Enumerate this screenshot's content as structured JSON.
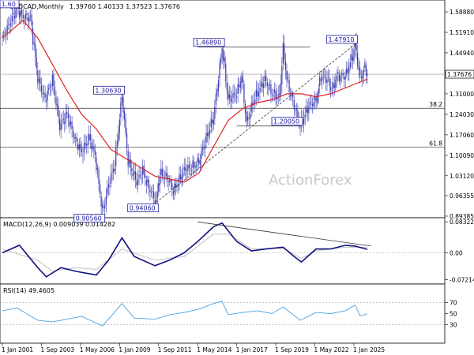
{
  "chart_data": [
    {
      "type": "candlestick",
      "title": "USDCAD,Monthly",
      "ohlc_header": "1.39760 1.40133 1.37523 1.37676",
      "current_price": 1.37676,
      "current_price_label": "1.37676",
      "ylim": [
        0.8938,
        1.6238
      ],
      "y_ticks": [
        "1.58880",
        "1.51910",
        "1.44940",
        "1.37970",
        "1.31000",
        "1.24030",
        "1.17060",
        "1.10090",
        "1.03120",
        "0.96355",
        "0.89385"
      ],
      "x_ticks": [
        "1 Jan 2001",
        "1 Sep 2003",
        "1 May 2006",
        "1 Jan 2009",
        "1 Sep 2011",
        "1 May 2014",
        "1 Jan 2017",
        "1 Sep 2019",
        "1 May 2022",
        "1 Jan 2025"
      ],
      "watermark": "ActionForex",
      "price_path": [
        [
          "2001-01",
          1.5
        ],
        [
          "2001-07",
          1.55
        ],
        [
          "2002-01",
          1.6
        ],
        [
          "2002-06",
          1.57
        ],
        [
          "2002-12",
          1.57
        ],
        [
          "2003-06",
          1.36
        ],
        [
          "2003-12",
          1.29
        ],
        [
          "2004-06",
          1.36
        ],
        [
          "2004-12",
          1.2
        ],
        [
          "2005-06",
          1.24
        ],
        [
          "2005-12",
          1.16
        ],
        [
          "2006-06",
          1.11
        ],
        [
          "2006-12",
          1.16
        ],
        [
          "2007-05",
          1.1
        ],
        [
          "2007-11",
          0.9056
        ],
        [
          "2008-04",
          1.0
        ],
        [
          "2008-09",
          1.07
        ],
        [
          "2009-03",
          1.3063
        ],
        [
          "2009-08",
          1.08
        ],
        [
          "2010-03",
          1.01
        ],
        [
          "2010-08",
          1.05
        ],
        [
          "2010-12",
          1.0
        ],
        [
          "2011-07",
          0.9406
        ],
        [
          "2011-10",
          1.04
        ],
        [
          "2012-05",
          1.02
        ],
        [
          "2012-09",
          0.98
        ],
        [
          "2013-06",
          1.05
        ],
        [
          "2013-12",
          1.06
        ],
        [
          "2014-06",
          1.08
        ],
        [
          "2014-12",
          1.16
        ],
        [
          "2015-06",
          1.23
        ],
        [
          "2016-01",
          1.4689
        ],
        [
          "2016-06",
          1.29
        ],
        [
          "2017-01",
          1.31
        ],
        [
          "2017-05",
          1.37
        ],
        [
          "2017-09",
          1.21
        ],
        [
          "2018-03",
          1.29
        ],
        [
          "2018-12",
          1.36
        ],
        [
          "2019-06",
          1.31
        ],
        [
          "2019-12",
          1.3
        ],
        [
          "2020-03",
          1.4668
        ],
        [
          "2020-06",
          1.36
        ],
        [
          "2020-12",
          1.27
        ],
        [
          "2021-05",
          1.2005
        ],
        [
          "2021-12",
          1.27
        ],
        [
          "2022-06",
          1.29
        ],
        [
          "2022-10",
          1.37
        ],
        [
          "2023-03",
          1.36
        ],
        [
          "2023-07",
          1.32
        ],
        [
          "2023-11",
          1.37
        ],
        [
          "2024-06",
          1.37
        ],
        [
          "2024-12",
          1.44
        ],
        [
          "2025-02",
          1.4791
        ],
        [
          "2025-06",
          1.36
        ],
        [
          "2025-10",
          1.4
        ],
        [
          "2025-12",
          1.3768
        ]
      ],
      "moving_average_path": [
        [
          "2001-01",
          1.5
        ],
        [
          "2002-06",
          1.56
        ],
        [
          "2003-06",
          1.5
        ],
        [
          "2004-06",
          1.41
        ],
        [
          "2005-06",
          1.32
        ],
        [
          "2006-06",
          1.24
        ],
        [
          "2007-06",
          1.19
        ],
        [
          "2008-06",
          1.12
        ],
        [
          "2009-06",
          1.09
        ],
        [
          "2010-06",
          1.06
        ],
        [
          "2011-06",
          1.03
        ],
        [
          "2012-06",
          1.02
        ],
        [
          "2013-06",
          1.01
        ],
        [
          "2014-06",
          1.04
        ],
        [
          "2015-06",
          1.13
        ],
        [
          "2016-06",
          1.22
        ],
        [
          "2017-06",
          1.26
        ],
        [
          "2018-06",
          1.28
        ],
        [
          "2019-06",
          1.29
        ],
        [
          "2020-06",
          1.31
        ],
        [
          "2021-06",
          1.31
        ],
        [
          "2022-06",
          1.3
        ],
        [
          "2023-06",
          1.31
        ],
        [
          "2024-06",
          1.33
        ],
        [
          "2025-06",
          1.35
        ],
        [
          "2025-12",
          1.36
        ]
      ],
      "annotations": [
        {
          "label": "1.46890",
          "date": "2016-01",
          "value": 1.4689
        },
        {
          "label": "1.47910",
          "date": "2025-02",
          "value": 1.4791
        },
        {
          "label": "1.30630",
          "date": "2009-03",
          "value": 1.3063
        },
        {
          "label": "1.20050",
          "date": "2021-05",
          "value": 1.2005
        },
        {
          "label": "0.94060",
          "date": "2011-07",
          "value": 0.9406
        },
        {
          "label": "0.90560",
          "date": "2007-11",
          "value": 0.9056
        },
        {
          "label": "1.60",
          "date": "2002-01",
          "value": 1.6
        }
      ],
      "fib_levels": [
        {
          "label": "38.2",
          "value": 1.2609
        },
        {
          "label": "61.8",
          "value": 1.1288
        }
      ],
      "resistance_lines": [
        {
          "from": "2014-05",
          "to": "2022-01",
          "value": 1.4689
        },
        {
          "from": "2017-01",
          "to": "2021-05",
          "value": 1.2005
        }
      ],
      "trendline": {
        "from": [
          "2011-07",
          0.9406
        ],
        "to": [
          "2025-02",
          1.4791
        ]
      }
    },
    {
      "type": "line",
      "title": "MACD(12,26,9) 0.009039 0.014282",
      "ylim": [
        -0.08,
        0.09
      ],
      "y_ticks": [
        "0.083225",
        "0.00",
        "-0.072148"
      ],
      "macd_path": [
        [
          "2001-01",
          0.0
        ],
        [
          "2002-03",
          0.02
        ],
        [
          "2003-06",
          -0.04
        ],
        [
          "2004-01",
          -0.065
        ],
        [
          "2005-01",
          -0.04
        ],
        [
          "2006-01",
          -0.05
        ],
        [
          "2007-06",
          -0.06
        ],
        [
          "2008-04",
          -0.02
        ],
        [
          "2009-03",
          0.04
        ],
        [
          "2010-01",
          -0.01
        ],
        [
          "2011-06",
          -0.035
        ],
        [
          "2012-06",
          -0.02
        ],
        [
          "2013-06",
          0.0
        ],
        [
          "2014-05",
          0.03
        ],
        [
          "2015-06",
          0.07
        ],
        [
          "2016-01",
          0.08
        ],
        [
          "2017-01",
          0.03
        ],
        [
          "2018-01",
          0.005
        ],
        [
          "2019-01",
          0.01
        ],
        [
          "2020-03",
          0.015
        ],
        [
          "2020-12",
          -0.01
        ],
        [
          "2021-06",
          -0.025
        ],
        [
          "2022-06",
          0.01
        ],
        [
          "2023-06",
          0.01
        ],
        [
          "2024-06",
          0.02
        ],
        [
          "2025-02",
          0.018
        ],
        [
          "2025-12",
          0.009
        ]
      ],
      "signal_path": [
        [
          "2001-01",
          0.01
        ],
        [
          "2003-06",
          -0.02
        ],
        [
          "2004-06",
          -0.05
        ],
        [
          "2006-01",
          -0.04
        ],
        [
          "2007-06",
          -0.045
        ],
        [
          "2009-03",
          0.01
        ],
        [
          "2011-06",
          -0.02
        ],
        [
          "2013-06",
          -0.01
        ],
        [
          "2015-06",
          0.05
        ],
        [
          "2016-06",
          0.05
        ],
        [
          "2018-01",
          0.01
        ],
        [
          "2020-03",
          0.012
        ],
        [
          "2021-06",
          -0.015
        ],
        [
          "2022-06",
          0.005
        ],
        [
          "2024-06",
          0.015
        ],
        [
          "2025-12",
          0.0143
        ]
      ],
      "divergence_line": {
        "from": [
          "2014-05",
          0.083
        ],
        "to": [
          "2026-03",
          0.018
        ]
      }
    },
    {
      "type": "line",
      "title": "RSI(14) 49.4605",
      "ylim": [
        0,
        100
      ],
      "y_ticks": [
        "70",
        "50",
        "30"
      ],
      "levels": [
        70,
        30
      ],
      "rsi_path": [
        [
          "2001-01",
          55
        ],
        [
          "2002-01",
          60
        ],
        [
          "2003-06",
          38
        ],
        [
          "2004-06",
          35
        ],
        [
          "2005-06",
          40
        ],
        [
          "2006-06",
          45
        ],
        [
          "2007-11",
          28
        ],
        [
          "2008-06",
          45
        ],
        [
          "2009-03",
          68
        ],
        [
          "2010-01",
          42
        ],
        [
          "2011-06",
          40
        ],
        [
          "2012-06",
          48
        ],
        [
          "2013-06",
          52
        ],
        [
          "2014-06",
          58
        ],
        [
          "2015-06",
          68
        ],
        [
          "2016-01",
          72
        ],
        [
          "2016-06",
          48
        ],
        [
          "2017-06",
          52
        ],
        [
          "2018-06",
          55
        ],
        [
          "2019-06",
          50
        ],
        [
          "2020-03",
          62
        ],
        [
          "2021-05",
          38
        ],
        [
          "2022-06",
          52
        ],
        [
          "2023-06",
          50
        ],
        [
          "2024-06",
          55
        ],
        [
          "2025-02",
          65
        ],
        [
          "2025-06",
          46
        ],
        [
          "2025-12",
          49.46
        ]
      ]
    }
  ],
  "colors": {
    "candle": "#3a3ab0",
    "ma": "#e02020",
    "macd": "#101080",
    "signal": "#c0c0c0",
    "rsi": "#4aa0e0",
    "level": "#606060",
    "trend": "#303030"
  }
}
